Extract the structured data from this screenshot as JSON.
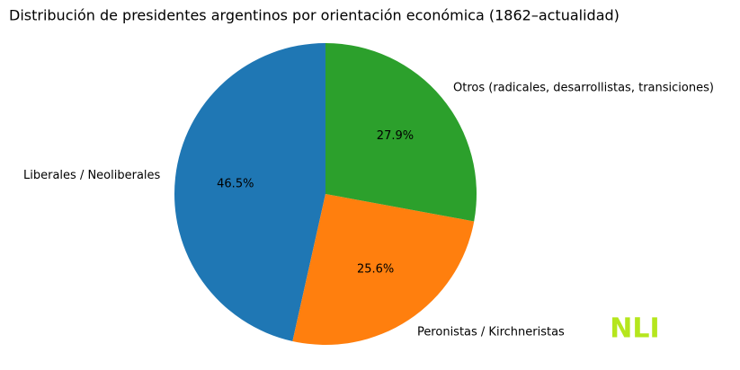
{
  "chart_data": {
    "type": "pie",
    "title": "Distribución de presidentes argentinos por orientación económica (1862–actualidad)",
    "categories": [
      "Liberales / Neoliberales",
      "Peronistas / Kirchneristas",
      "Otros (radicales, desarrollistas, transiciones)"
    ],
    "values": [
      46.5,
      25.6,
      27.9
    ],
    "value_labels": [
      "46.5%",
      "25.6%",
      "27.9%"
    ],
    "colors": [
      "#1f77b4",
      "#ff7f0e",
      "#2ca02c"
    ],
    "start_angle": 90,
    "counterclockwise": true,
    "watermark": "NLI"
  }
}
